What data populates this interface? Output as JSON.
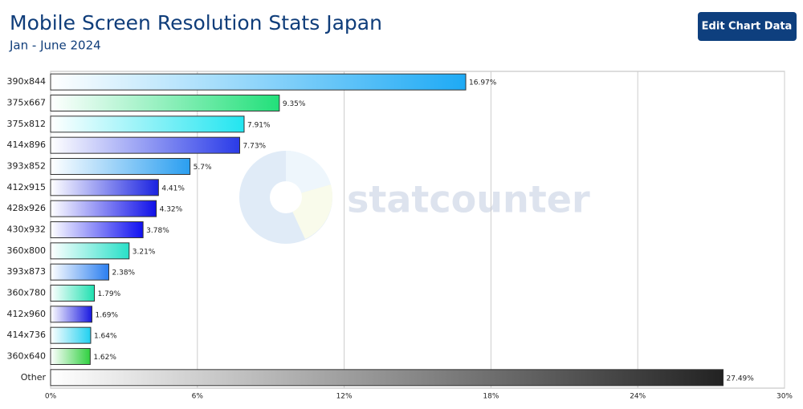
{
  "chart_data": {
    "type": "bar",
    "orientation": "horizontal",
    "title": "Mobile Screen Resolution Stats Japan",
    "subtitle": "Jan - June 2024",
    "button": "Edit Chart Data",
    "watermark": "statcounter",
    "categories": [
      "390x844",
      "375x667",
      "375x812",
      "414x896",
      "393x852",
      "412x915",
      "428x926",
      "430x932",
      "360x800",
      "393x873",
      "360x780",
      "412x960",
      "414x736",
      "360x640",
      "Other"
    ],
    "values": [
      16.97,
      9.35,
      7.91,
      7.73,
      5.7,
      4.41,
      4.32,
      3.78,
      3.21,
      2.38,
      1.79,
      1.69,
      1.64,
      1.62,
      27.49
    ],
    "value_labels": [
      "16.97%",
      "9.35%",
      "7.91%",
      "7.73%",
      "5.7%",
      "4.41%",
      "4.32%",
      "3.78%",
      "3.21%",
      "2.38%",
      "1.79%",
      "1.69%",
      "1.64%",
      "1.62%",
      "27.49%"
    ],
    "colors": [
      "#1eaaf5",
      "#22e07a",
      "#22e5f0",
      "#2a3be8",
      "#2a9ef0",
      "#1a22e0",
      "#1010e8",
      "#1010f0",
      "#28e0c8",
      "#2a7ef0",
      "#20e0b0",
      "#1818e0",
      "#20d0f0",
      "#30d040",
      "#222222"
    ],
    "xlim": [
      0,
      30
    ],
    "xticks": [
      {
        "value": 0,
        "label": "0%"
      },
      {
        "value": 6,
        "label": "6%"
      },
      {
        "value": 12,
        "label": "12%"
      },
      {
        "value": 18,
        "label": "18%"
      },
      {
        "value": 24,
        "label": "24%"
      },
      {
        "value": 30,
        "label": "30%"
      }
    ],
    "grid": true
  }
}
